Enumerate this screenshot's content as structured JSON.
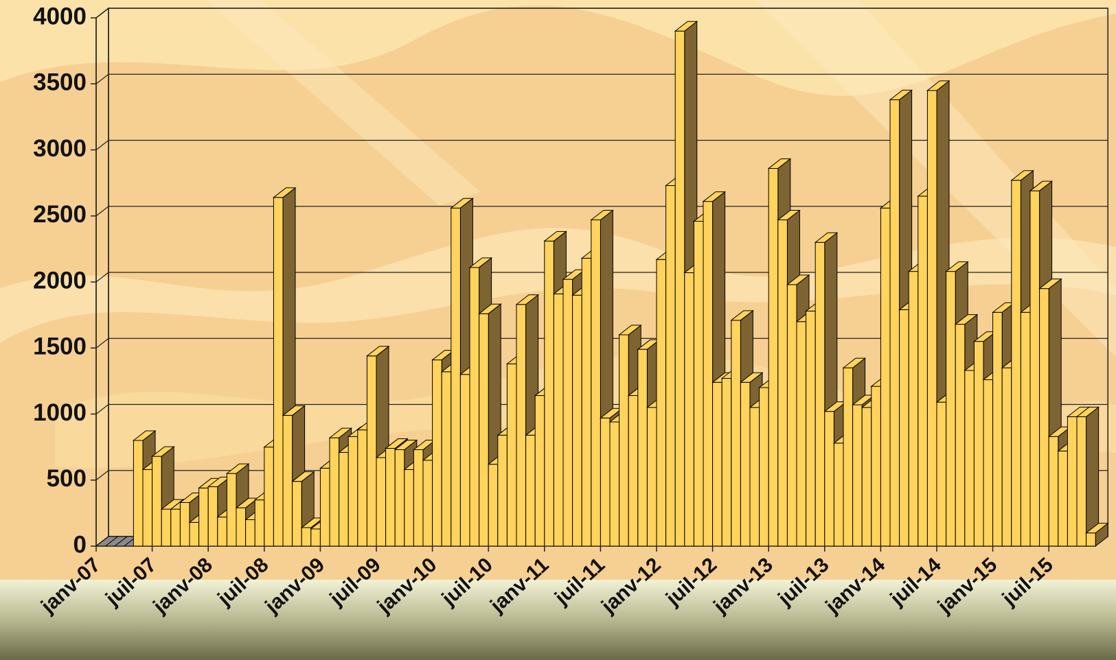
{
  "chart_data": {
    "type": "bar3d",
    "categories": [
      "janv-07",
      null,
      null,
      null,
      null,
      null,
      "juil-07",
      null,
      null,
      null,
      null,
      null,
      "janv-08",
      null,
      null,
      null,
      null,
      null,
      "juil-08",
      null,
      null,
      null,
      null,
      null,
      "janv-09",
      null,
      null,
      null,
      null,
      null,
      "juil-09",
      null,
      null,
      null,
      null,
      null,
      "janv-10",
      null,
      null,
      null,
      null,
      null,
      "juil-10",
      null,
      null,
      null,
      null,
      null,
      "janv-11",
      null,
      null,
      null,
      null,
      null,
      "juil-11",
      null,
      null,
      null,
      null,
      null,
      "janv-12",
      null,
      null,
      null,
      null,
      null,
      "juil-12",
      null,
      null,
      null,
      null,
      null,
      "janv-13",
      null,
      null,
      null,
      null,
      null,
      "juil-13",
      null,
      null,
      null,
      null,
      null,
      "janv-14",
      null,
      null,
      null,
      null,
      null,
      "juil-14",
      null,
      null,
      null,
      null,
      null,
      "janv-15",
      null,
      null,
      null,
      null,
      null,
      "juil-15",
      null,
      null,
      null,
      null
    ],
    "values": [
      0,
      0,
      0,
      0,
      800,
      580,
      680,
      280,
      280,
      330,
      180,
      440,
      450,
      220,
      550,
      290,
      200,
      350,
      750,
      2640,
      990,
      490,
      140,
      130,
      590,
      820,
      710,
      830,
      880,
      1440,
      670,
      740,
      730,
      580,
      730,
      650,
      1410,
      1320,
      2560,
      1300,
      2110,
      1760,
      620,
      840,
      1380,
      1830,
      840,
      1140,
      2310,
      1910,
      2020,
      1900,
      2180,
      2470,
      970,
      940,
      1600,
      1140,
      1490,
      1050,
      2170,
      2730,
      3900,
      2070,
      2460,
      2610,
      1240,
      1270,
      1710,
      1240,
      1050,
      1200,
      2860,
      2470,
      1980,
      1700,
      1780,
      2300,
      1020,
      780,
      1350,
      1070,
      1050,
      1210,
      2560,
      3380,
      1790,
      2080,
      2650,
      3450,
      1090,
      2080,
      1680,
      1330,
      1550,
      1260,
      1770,
      1350,
      2770,
      1770,
      2690,
      1950,
      830,
      720,
      980,
      980,
      100
    ],
    "color": "#ffd35c",
    "side_color": "#7d6432",
    "ylim": [
      0,
      4000
    ],
    "yticks": [
      0,
      500,
      1000,
      1500,
      2000,
      2500,
      3000,
      3500,
      4000
    ],
    "grid": true
  }
}
